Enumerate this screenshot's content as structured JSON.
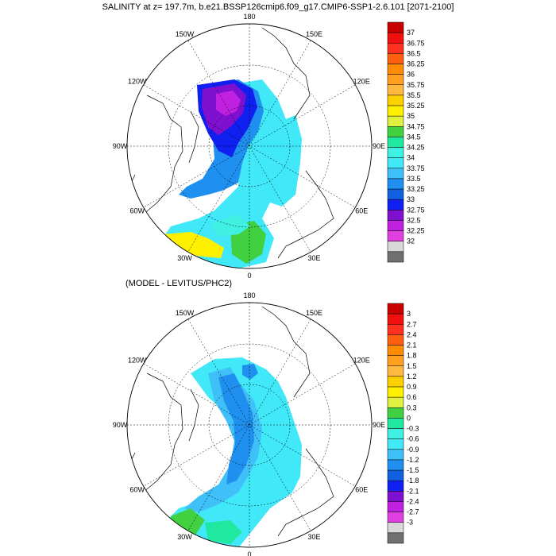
{
  "title": "SALINITY at z= 197.7m, b.e21.BSSP126cmip6.f09_g17.CMIP6-SSP1-2.6.101 [2071-2100]",
  "subtitle": "(MODEL - LEVITUS/PHC2)",
  "lon_labels": [
    "180",
    "150E",
    "120E",
    "90E",
    "60E",
    "30E",
    "0",
    "30W",
    "60W",
    "90W",
    "120W",
    "150W"
  ],
  "top_colorbar": {
    "labels": [
      "37",
      "36.75",
      "36.5",
      "36.25",
      "36",
      "35.75",
      "35.5",
      "35.25",
      "35",
      "34.75",
      "34.5",
      "34.25",
      "34",
      "33.75",
      "33.5",
      "33.25",
      "33",
      "32.75",
      "32.5",
      "32.25",
      "32"
    ],
    "colors": [
      "#c80000",
      "#f01010",
      "#ff3020",
      "#ff6010",
      "#ff8c00",
      "#ffa020",
      "#ffb840",
      "#ffd000",
      "#fff000",
      "#e0f040",
      "#40d040",
      "#20e8a0",
      "#40f0e0",
      "#40e8f8",
      "#40c0f8",
      "#2090f0",
      "#1060e0",
      "#1020f0",
      "#8010d0",
      "#c020e0",
      "#e040e0",
      "#d8d8d8",
      "#707070"
    ]
  },
  "bottom_colorbar": {
    "labels": [
      "3",
      "2.7",
      "2.4",
      "2.1",
      "1.8",
      "1.5",
      "1.2",
      "0.9",
      "0.6",
      "0.3",
      "0",
      "-0.3",
      "-0.6",
      "-0.9",
      "-1.2",
      "-1.5",
      "-1.8",
      "-2.1",
      "-2.4",
      "-2.7",
      "-3"
    ],
    "colors": [
      "#c80000",
      "#f01010",
      "#ff3020",
      "#ff6010",
      "#ff8c00",
      "#ffa020",
      "#ffb840",
      "#ffd000",
      "#fff000",
      "#e0f040",
      "#40d040",
      "#20e8a0",
      "#40f0e0",
      "#40e8f8",
      "#40c0f8",
      "#2090f0",
      "#1060e0",
      "#1020f0",
      "#8010d0",
      "#c020e0",
      "#e040e0",
      "#d8d8d8",
      "#707070"
    ]
  }
}
